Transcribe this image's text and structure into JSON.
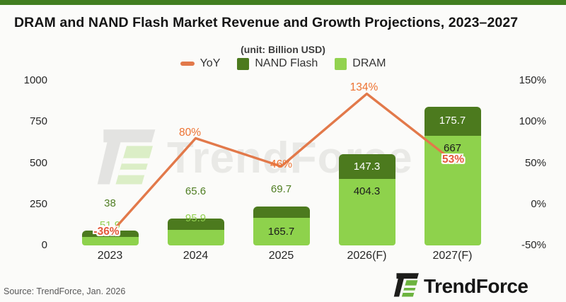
{
  "banner_color": "#417E20",
  "header": {
    "title": "DRAM and NAND Flash Market Revenue and Growth Projections, 2023–2027"
  },
  "subtitle": "(unit: Billion USD)",
  "legend": [
    {
      "label": "YoY",
      "swatch": "line",
      "color": "#E2794A"
    },
    {
      "label": "NAND Flash",
      "swatch": "square",
      "color": "#4C7A1E"
    },
    {
      "label": "DRAM",
      "swatch": "square",
      "color": "#92D24F"
    }
  ],
  "chart_data": {
    "type": "bar",
    "subtype": "stacked-bars-with-line-overlay",
    "title": "DRAM and NAND Flash Market Revenue and Growth Projections, 2023–2027",
    "unit_note": "(unit: Billion USD)",
    "categories": [
      "2023",
      "2024",
      "2025",
      "2026(F)",
      "2027(F)"
    ],
    "series": [
      {
        "name": "DRAM",
        "type": "bar",
        "axis": "left",
        "color": "#8ED24C",
        "values": [
          51.9,
          95.9,
          165.7,
          404.3,
          667
        ]
      },
      {
        "name": "NAND Flash",
        "type": "bar",
        "axis": "left",
        "color": "#4C7A1E",
        "values": [
          38,
          65.6,
          69.7,
          147.3,
          175.7
        ]
      },
      {
        "name": "YoY",
        "type": "line",
        "axis": "right",
        "color": "#E2794A",
        "values": [
          -36,
          80,
          46,
          134,
          53
        ],
        "point_labels": [
          "-36%",
          "80%",
          "46%",
          "134%",
          "53%"
        ]
      }
    ],
    "value_labels": {
      "dram": [
        "51.9",
        "95.9",
        "165.7",
        "404.3",
        "667"
      ],
      "nand": [
        "38",
        "65.6",
        "69.7",
        "147.3",
        "175.7"
      ]
    },
    "label_layout": {
      "dram": [
        "above",
        "above",
        "inside_center",
        "inside_top",
        "inside_top"
      ],
      "nand": [
        "above",
        "above",
        "above",
        "inside_center",
        "inside_center"
      ]
    },
    "left_axis": {
      "ticks": [
        1000,
        750,
        500,
        250,
        0
      ],
      "min": 0,
      "max": 1000
    },
    "right_axis": {
      "ticks": [
        "150%",
        "100%",
        "50%",
        "0%",
        "-50%"
      ],
      "min": -50,
      "max": 150
    },
    "grid": false,
    "legend_position": "top-center",
    "colors": {
      "dram_bar": "#8ED24C",
      "nand_bar": "#4C7A1E",
      "yoy_line": "#E2794A",
      "yoy_label": "#ED7231",
      "yoy_label_stroked": "#E4593B",
      "dram_label_above": "#92D050",
      "nand_label_above": "#4F7D22",
      "inside_dark_text": "#1b1b1b",
      "inside_light_text": "#ffffff"
    }
  },
  "watermark": {
    "text": "TrendForce"
  },
  "footer": {
    "source": "Source: TrendForce, Jan. 2026",
    "logo_text": "TrendForce"
  }
}
